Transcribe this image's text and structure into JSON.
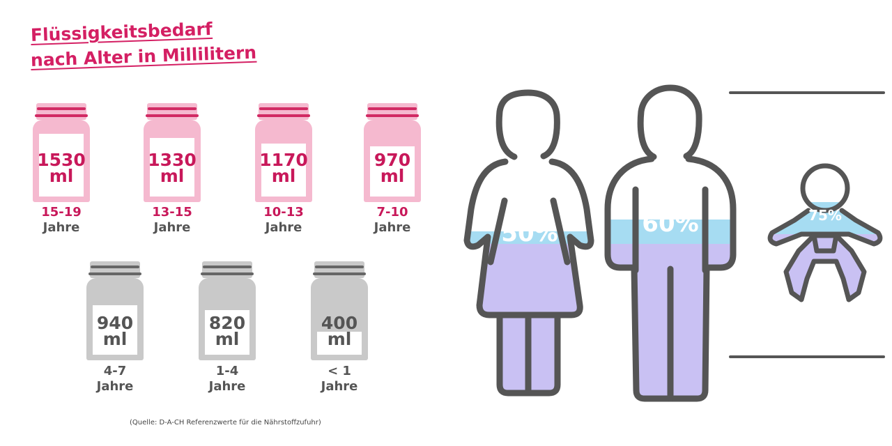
{
  "title": {
    "line1": "Flüssigkeitsbedarf",
    "line2": "nach Alter in Millilitern"
  },
  "bottles": [
    {
      "value": "1530",
      "unit": "ml",
      "age": "15-19",
      "age_unit": "Jahre",
      "color": "pink"
    },
    {
      "value": "1330",
      "unit": "ml",
      "age": "13-15",
      "age_unit": "Jahre",
      "color": "pink"
    },
    {
      "value": "1170",
      "unit": "ml",
      "age": "10-13",
      "age_unit": "Jahre",
      "color": "pink"
    },
    {
      "value": "970",
      "unit": "ml",
      "age": "7-10",
      "age_unit": "Jahre",
      "color": "pink"
    },
    {
      "value": "940",
      "unit": "ml",
      "age": "4-7",
      "age_unit": "Jahre",
      "color": "grey"
    },
    {
      "value": "820",
      "unit": "ml",
      "age": "1-4",
      "age_unit": "Jahre",
      "color": "grey"
    },
    {
      "value": "400",
      "unit": "ml",
      "age": "< 1",
      "age_unit": "Jahre",
      "color": "grey"
    }
  ],
  "figures": [
    {
      "kind": "woman",
      "percent": "50%"
    },
    {
      "kind": "man",
      "percent": "60%"
    },
    {
      "kind": "baby",
      "percent": "75%"
    }
  ],
  "source": "(Quelle: D-A-CH Referenzwerte für die Nährstoffzufuhr)",
  "colors": {
    "accent": "#d41f63",
    "bottle_pink": "#f5b9cf",
    "bottle_grey": "#c9c9c9",
    "water_blue": "#a6dcf2",
    "water_purple": "#c9c1f3",
    "outline": "#555555"
  }
}
